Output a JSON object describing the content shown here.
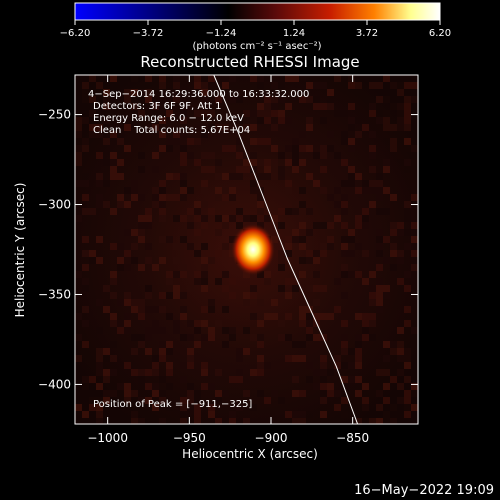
{
  "chart_data": {
    "type": "heatmap",
    "title": "Reconstructed RHESSI Image",
    "xlabel": "Heliocentric X (arcsec)",
    "ylabel": "Heliocentric Y (arcsec)",
    "xlim": [
      -1020,
      -810
    ],
    "ylim": [
      -422,
      -228
    ],
    "x_ticks": [
      -1000,
      -950,
      -900,
      -850
    ],
    "x_tick_labels": [
      "−1000",
      "−950",
      "−900",
      "−850"
    ],
    "y_ticks": [
      -250,
      -300,
      -350,
      -400
    ],
    "y_tick_labels": [
      "−250",
      "−300",
      "−350",
      "−400"
    ],
    "colorbar": {
      "min": -6.2,
      "max": 6.2,
      "ticks": [
        -6.2,
        -3.72,
        -1.24,
        1.24,
        3.72,
        6.2
      ],
      "tick_labels": [
        "−6.20",
        "−3.72",
        "−1.24",
        "1.24",
        "3.72",
        "6.20"
      ],
      "unit_label": "(photons cm⁻² s⁻¹ asec⁻²)",
      "colormap": [
        "#0000ff",
        "#000000",
        "#5a0a0a",
        "#c81e00",
        "#ff8000",
        "#ffff90",
        "#ffffff"
      ]
    },
    "source": {
      "x": -911,
      "y": -325
    },
    "annotations": [
      "4−Sep−2014 16:29:36.000 to 16:33:32.000",
      "Detectors: 3F 6F 9F, Att 1",
      "Energy Range: 6.0 − 12.0 keV",
      "Clean    Total counts: 5.67E+04"
    ],
    "peak_label": "Position of Peak = [−911,−325]",
    "limb_points": [
      [
        -935,
        -228
      ],
      [
        -920,
        -260
      ],
      [
        -905,
        -295
      ],
      [
        -890,
        -330
      ],
      [
        -875,
        -360
      ],
      [
        -860,
        -390
      ],
      [
        -847,
        -422
      ]
    ]
  },
  "footer": {
    "timestamp": "16−May−2022 19:09"
  },
  "colors": {
    "background": "#000000",
    "axis": "#ffffff",
    "field": "#1a0806"
  }
}
